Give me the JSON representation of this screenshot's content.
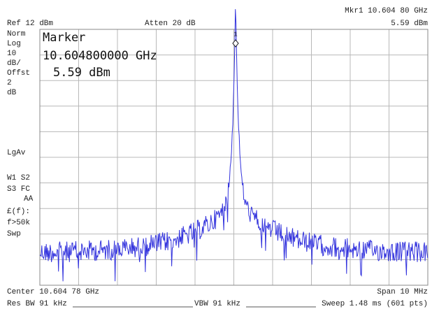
{
  "header": {
    "ref": "Ref 12 dBm",
    "atten": "Atten 20 dB",
    "marker_freq": "Mkr1  10.604 80 GHz",
    "marker_level": "5.59 dBm"
  },
  "side_labels": [
    "Norm",
    "Log",
    "10",
    "dB/",
    "Offst",
    "2",
    "dB",
    "LgAv",
    "W1  S2",
    "S3  FC",
    "AA",
    "£(f):",
    "f>50k",
    "Swp"
  ],
  "marker_box": {
    "title": "Marker",
    "freq": "10.604800000 GHz",
    "level": "5.59 dBm"
  },
  "marker_id": "1",
  "footer": {
    "center": "Center 10.604 78 GHz",
    "span": "Span 10 MHz",
    "res_bw": "Res BW 91 kHz",
    "vbw": "VBW 91 kHz",
    "sweep": "Sweep 1.48 ms (601 pts)"
  }
}
